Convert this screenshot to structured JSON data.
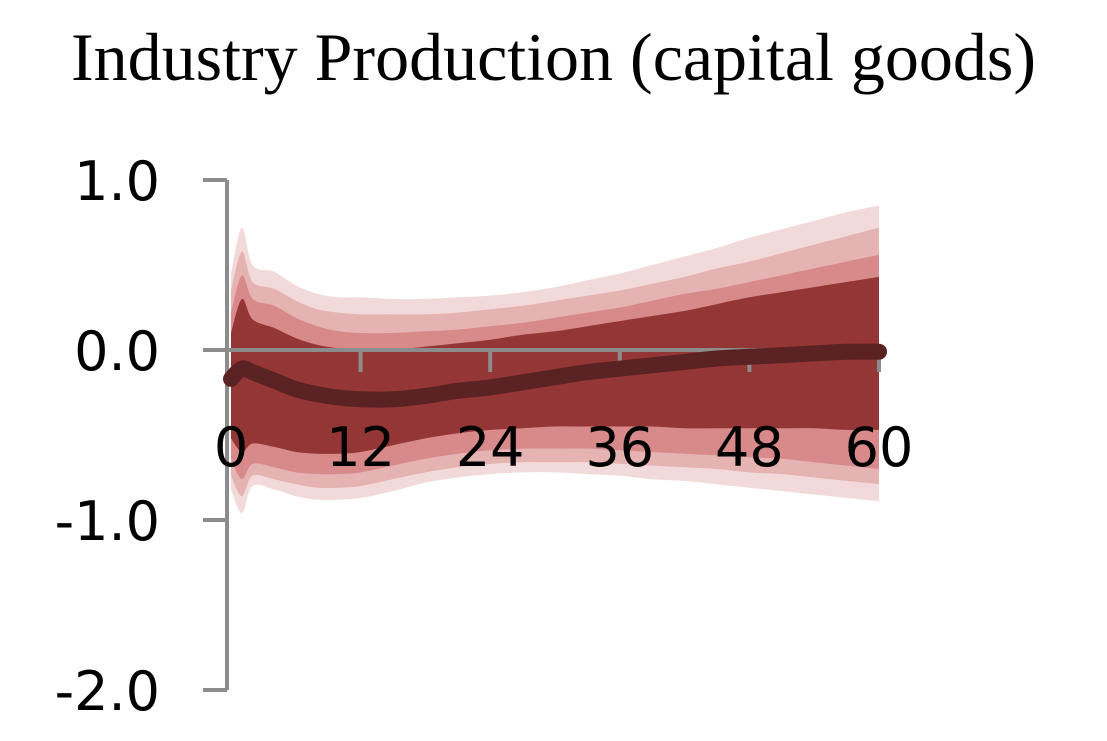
{
  "chart_data": {
    "type": "area",
    "title": "Industry Production (capital goods)",
    "xlabel": "",
    "ylabel": "",
    "xlim": [
      0,
      60
    ],
    "ylim": [
      -2.0,
      1.0
    ],
    "x_ticks": [
      0,
      12,
      24,
      36,
      48,
      60
    ],
    "x_tick_labels": [
      "0",
      "12",
      "24",
      "36",
      "48",
      "60"
    ],
    "y_ticks": [
      1.0,
      0.0,
      -1.0,
      -2.0
    ],
    "y_tick_labels": [
      "1.0",
      "0.0",
      "-1.0",
      "-2.0"
    ],
    "grid": false,
    "legend": "none",
    "colors": {
      "band_outer": "#f3dada",
      "band_mid_outer": "#e6b3b3",
      "band_mid_inner": "#d88a8a",
      "band_inner": "#943636",
      "median_line": "#5a2222",
      "axis": "#8c8c8c"
    },
    "x": [
      0,
      1,
      2,
      4,
      6,
      8,
      10,
      12,
      15,
      18,
      21,
      24,
      27,
      30,
      33,
      36,
      39,
      42,
      45,
      48,
      51,
      54,
      57,
      60
    ],
    "median": [
      -0.17,
      -0.11,
      -0.13,
      -0.18,
      -0.23,
      -0.26,
      -0.28,
      -0.29,
      -0.29,
      -0.27,
      -0.24,
      -0.22,
      -0.19,
      -0.16,
      -0.13,
      -0.11,
      -0.09,
      -0.07,
      -0.05,
      -0.04,
      -0.03,
      -0.02,
      -0.01,
      -0.01
    ],
    "bands": [
      {
        "level": "outer",
        "upper": [
          0.45,
          0.72,
          0.5,
          0.46,
          0.38,
          0.33,
          0.31,
          0.31,
          0.3,
          0.3,
          0.31,
          0.32,
          0.34,
          0.37,
          0.41,
          0.45,
          0.5,
          0.55,
          0.6,
          0.66,
          0.71,
          0.76,
          0.81,
          0.85
        ],
        "lower": [
          -0.82,
          -0.96,
          -0.8,
          -0.82,
          -0.86,
          -0.88,
          -0.88,
          -0.87,
          -0.83,
          -0.78,
          -0.75,
          -0.73,
          -0.72,
          -0.72,
          -0.73,
          -0.74,
          -0.76,
          -0.77,
          -0.79,
          -0.81,
          -0.83,
          -0.85,
          -0.87,
          -0.89
        ]
      },
      {
        "level": "mid-outer",
        "upper": [
          0.35,
          0.58,
          0.4,
          0.36,
          0.29,
          0.24,
          0.22,
          0.21,
          0.21,
          0.21,
          0.22,
          0.24,
          0.26,
          0.29,
          0.32,
          0.35,
          0.39,
          0.43,
          0.48,
          0.52,
          0.57,
          0.62,
          0.67,
          0.72
        ],
        "lower": [
          -0.74,
          -0.86,
          -0.74,
          -0.76,
          -0.79,
          -0.81,
          -0.81,
          -0.8,
          -0.76,
          -0.72,
          -0.69,
          -0.67,
          -0.66,
          -0.66,
          -0.66,
          -0.67,
          -0.68,
          -0.69,
          -0.7,
          -0.72,
          -0.73,
          -0.75,
          -0.77,
          -0.79
        ]
      },
      {
        "level": "mid-inner",
        "upper": [
          0.22,
          0.44,
          0.3,
          0.26,
          0.19,
          0.14,
          0.11,
          0.1,
          0.1,
          0.11,
          0.12,
          0.14,
          0.16,
          0.19,
          0.22,
          0.25,
          0.29,
          0.33,
          0.36,
          0.4,
          0.44,
          0.48,
          0.52,
          0.56
        ],
        "lower": [
          -0.64,
          -0.76,
          -0.67,
          -0.69,
          -0.72,
          -0.73,
          -0.73,
          -0.72,
          -0.68,
          -0.64,
          -0.61,
          -0.59,
          -0.58,
          -0.58,
          -0.58,
          -0.59,
          -0.6,
          -0.61,
          -0.62,
          -0.63,
          -0.64,
          -0.66,
          -0.68,
          -0.7
        ]
      },
      {
        "level": "inner",
        "upper": [
          0.1,
          0.3,
          0.18,
          0.13,
          0.07,
          0.03,
          0.01,
          0.0,
          0.0,
          0.02,
          0.04,
          0.06,
          0.09,
          0.11,
          0.14,
          0.17,
          0.2,
          0.23,
          0.27,
          0.31,
          0.34,
          0.37,
          0.4,
          0.43
        ],
        "lower": [
          -0.52,
          -0.6,
          -0.55,
          -0.57,
          -0.6,
          -0.61,
          -0.61,
          -0.6,
          -0.56,
          -0.52,
          -0.49,
          -0.47,
          -0.46,
          -0.45,
          -0.45,
          -0.45,
          -0.45,
          -0.46,
          -0.46,
          -0.46,
          -0.46,
          -0.46,
          -0.47,
          -0.47
        ]
      }
    ]
  }
}
